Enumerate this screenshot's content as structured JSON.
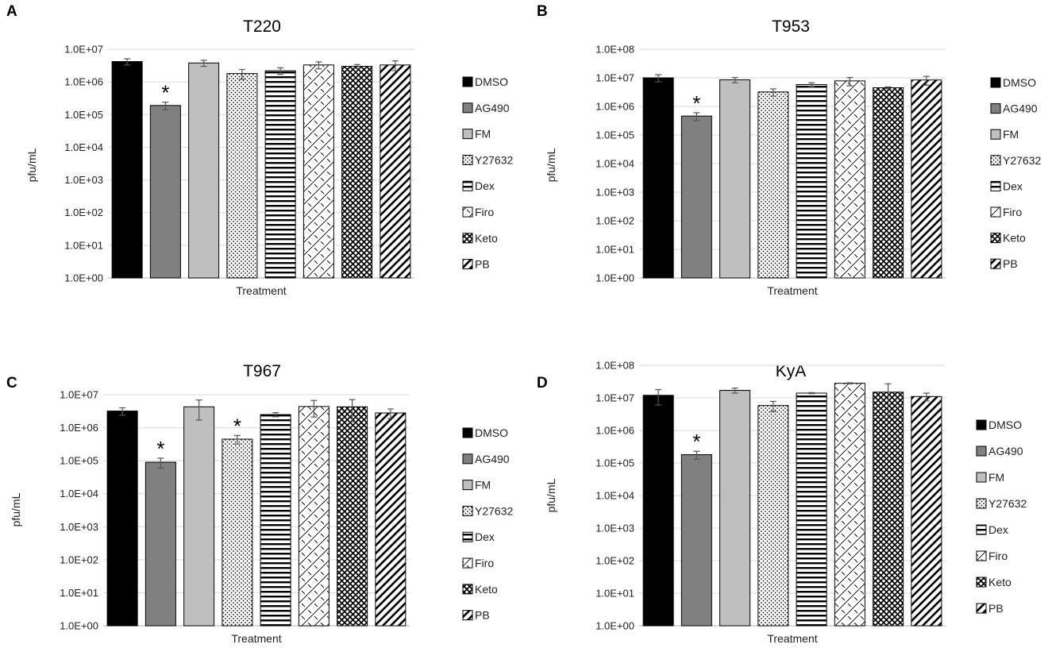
{
  "chart_data": [
    {
      "panel": "A",
      "type": "bar",
      "title": "T220",
      "xlabel": "Treatment",
      "ylabel": "pfu/mL",
      "yscale": "log",
      "ylim": [
        1,
        10000000
      ],
      "yticks": [
        "1.0E+00",
        "1.0E+01",
        "1.0E+02",
        "1.0E+03",
        "1.0E+04",
        "1.0E+05",
        "1.0E+06",
        "1.0E+07"
      ],
      "legend": [
        "DMSO",
        "AG490",
        "FM",
        "Y27632",
        "Dex",
        "Firo",
        "Keto",
        "PB"
      ],
      "values": [
        4200000,
        190000,
        3800000,
        1800000,
        2200000,
        3300000,
        3000000,
        3300000
      ],
      "errors": [
        900000,
        50000,
        800000,
        600000,
        500000,
        800000,
        400000,
        1100000
      ],
      "significant": [
        false,
        true,
        false,
        false,
        false,
        false,
        false,
        false
      ],
      "grid": true
    },
    {
      "panel": "B",
      "type": "bar",
      "title": "T953",
      "xlabel": "Treatment",
      "ylabel": "pfu/mL",
      "yscale": "log",
      "ylim": [
        1,
        100000000
      ],
      "yticks": [
        "1.0E+00",
        "1.0E+01",
        "1.0E+02",
        "1.0E+03",
        "1.0E+04",
        "1.0E+05",
        "1.0E+06",
        "1.0E+07",
        "1.0E+08"
      ],
      "legend": [
        "DMSO",
        "AG490",
        "FM",
        "Y27632",
        "Dex",
        "Firo",
        "Keto",
        "PB"
      ],
      "values": [
        10000000,
        460000,
        8500000,
        3200000,
        5800000,
        7800000,
        4500000,
        8400000
      ],
      "errors": [
        2800000,
        140000,
        1800000,
        900000,
        900000,
        2500000,
        300000,
        2900000
      ],
      "significant": [
        false,
        true,
        false,
        false,
        false,
        false,
        false,
        false
      ],
      "grid": true
    },
    {
      "panel": "C",
      "type": "bar",
      "title": "T967",
      "xlabel": "Treatment",
      "ylabel": "pfu/mL",
      "yscale": "log",
      "ylim": [
        1,
        10000000
      ],
      "yticks": [
        "1.0E+00",
        "1.0E+01",
        "1.0E+02",
        "1.0E+03",
        "1.0E+04",
        "1.0E+05",
        "1.0E+06",
        "1.0E+07"
      ],
      "legend": [
        "DMSO",
        "AG490",
        "FM",
        "Y27632",
        "Dex",
        "Firo",
        "Keto",
        "PB"
      ],
      "values": [
        3200000,
        90000,
        4300000,
        450000,
        2500000,
        4400000,
        4300000,
        2800000
      ],
      "errors": [
        800000,
        30000,
        2600000,
        130000,
        350000,
        2300000,
        2800000,
        900000
      ],
      "significant": [
        false,
        true,
        false,
        true,
        false,
        false,
        false,
        false
      ],
      "grid": true
    },
    {
      "panel": "D",
      "type": "bar",
      "title": "KyA",
      "xlabel": "Treatment",
      "ylabel": "pfu/mL",
      "yscale": "log",
      "ylim": [
        1,
        100000000
      ],
      "yticks": [
        "1.0E+00",
        "1.0E+01",
        "1.0E+02",
        "1.0E+03",
        "1.0E+04",
        "1.0E+05",
        "1.0E+06",
        "1.0E+07",
        "1.0E+08"
      ],
      "legend": [
        "DMSO",
        "AG490",
        "FM",
        "Y27632",
        "Dex",
        "Firo",
        "Keto",
        "PB"
      ],
      "values": [
        12000000,
        180000,
        17000000,
        5800000,
        14000000,
        28000000,
        15000000,
        11000000
      ],
      "errors": [
        6000000,
        50000,
        3000000,
        2000000,
        500000,
        1000000,
        12000000,
        3000000
      ],
      "significant": [
        false,
        true,
        false,
        false,
        false,
        false,
        false,
        false
      ],
      "grid": true
    }
  ]
}
